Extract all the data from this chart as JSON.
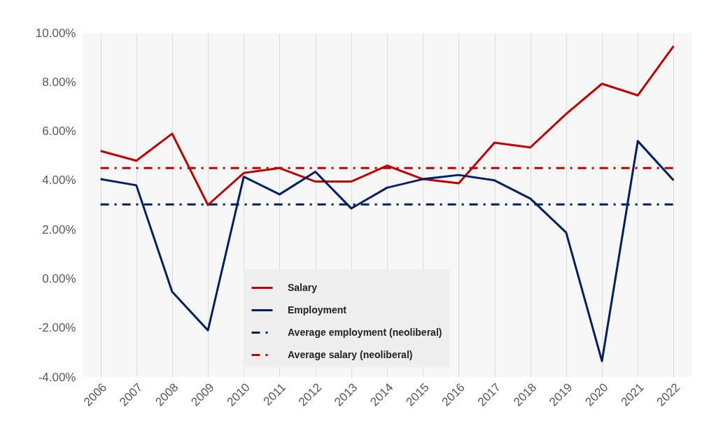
{
  "chart_data": {
    "type": "line",
    "categories": [
      "2006",
      "2007",
      "2008",
      "2009",
      "2010",
      "2011",
      "2012",
      "2013",
      "2014",
      "2015",
      "2016",
      "2017",
      "2018",
      "2019",
      "2020",
      "2021",
      "2022"
    ],
    "series": [
      {
        "name": "Salary",
        "color": "#c00000",
        "line_style": "solid",
        "values": [
          5.2,
          4.8,
          5.9,
          3.0,
          4.3,
          4.5,
          3.95,
          3.95,
          4.6,
          4.05,
          3.88,
          5.53,
          5.34,
          6.7,
          7.93,
          7.46,
          9.46
        ]
      },
      {
        "name": "Employment",
        "color": "#002060",
        "line_style": "solid",
        "values": [
          4.05,
          3.8,
          -0.53,
          -2.1,
          4.15,
          3.43,
          4.35,
          2.86,
          3.7,
          4.05,
          4.22,
          4.0,
          3.26,
          1.88,
          -3.35,
          5.6,
          4.0
        ]
      },
      {
        "name": "Average employment (neoliberal)",
        "color": "#002060",
        "line_style": "dashed",
        "values": [
          3.02,
          3.02,
          3.02,
          3.02,
          3.02,
          3.02,
          3.02,
          3.02,
          3.02,
          3.02,
          3.02,
          3.02,
          3.02,
          3.02,
          3.02,
          3.02,
          3.02
        ]
      },
      {
        "name": "Average salary (neoliberal)",
        "color": "#c00000",
        "line_style": "dashed",
        "values": [
          4.5,
          4.5,
          4.5,
          4.5,
          4.5,
          4.5,
          4.5,
          4.5,
          4.5,
          4.5,
          4.5,
          4.5,
          4.5,
          4.5,
          4.5,
          4.5,
          4.5
        ]
      }
    ],
    "ylim": [
      -4,
      10
    ],
    "yticks": [
      {
        "value": -4,
        "label": "-4.00%"
      },
      {
        "value": -2,
        "label": "-2.00%"
      },
      {
        "value": 0,
        "label": "0.00%"
      },
      {
        "value": 2,
        "label": "2.00%"
      },
      {
        "value": 4,
        "label": "4.00%"
      },
      {
        "value": 6,
        "label": "6.00%"
      },
      {
        "value": 8,
        "label": "8.00%"
      },
      {
        "value": 10,
        "label": "10.00%"
      }
    ],
    "grid": "x",
    "legend": "bottom",
    "marker": "none"
  }
}
